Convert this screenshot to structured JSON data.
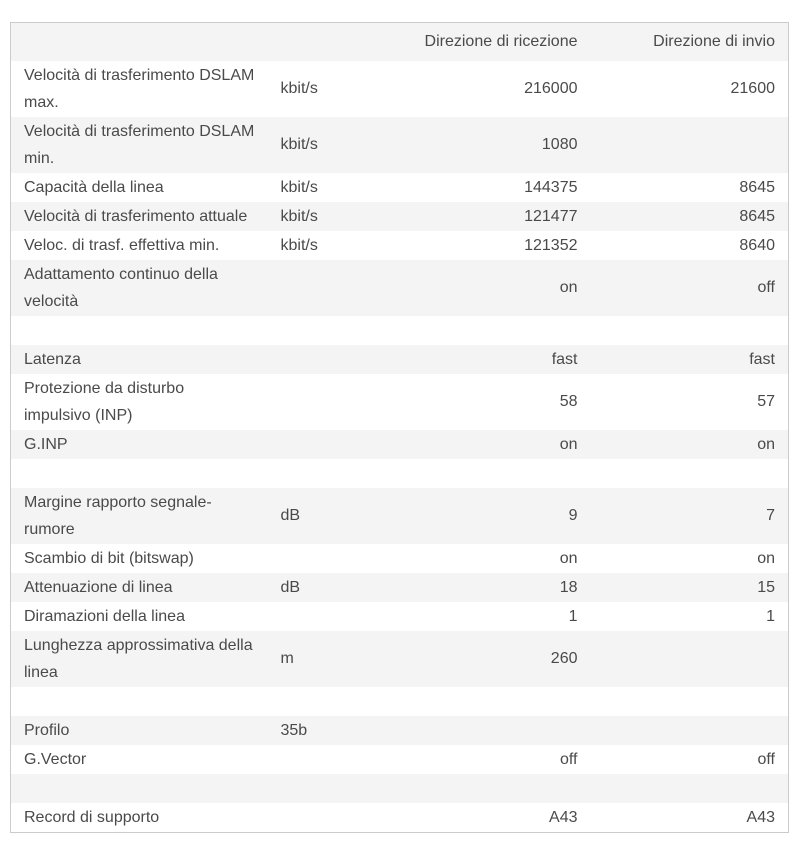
{
  "table": {
    "header": {
      "direction_rx": "Direzione di ricezione",
      "direction_tx": "Direzione di invio"
    },
    "rows": [
      {
        "label": "Velocità di trasferimento DSLAM\nmax.",
        "unit": "kbit/s",
        "rx": "216000",
        "tx": "21600"
      },
      {
        "label": "Velocità di trasferimento DSLAM\nmin.",
        "unit": "kbit/s",
        "rx": "1080",
        "tx": ""
      },
      {
        "label": "Capacità della linea",
        "unit": "kbit/s",
        "rx": "144375",
        "tx": "8645"
      },
      {
        "label": "Velocità di trasferimento attuale",
        "unit": "kbit/s",
        "rx": "121477",
        "tx": "8645"
      },
      {
        "label": "Veloc. di trasf. effettiva min.",
        "unit": "kbit/s",
        "rx": "121352",
        "tx": "8640"
      },
      {
        "label": "Adattamento continuo della\nvelocità",
        "unit": "",
        "rx": "on",
        "tx": "off"
      },
      {
        "label": "",
        "unit": "",
        "rx": "",
        "tx": ""
      },
      {
        "label": "Latenza",
        "unit": "",
        "rx": "fast",
        "tx": "fast"
      },
      {
        "label": "Protezione da disturbo\nimpulsivo (INP)",
        "unit": "",
        "rx": "58",
        "tx": "57"
      },
      {
        "label": "G.INP",
        "unit": "",
        "rx": "on",
        "tx": "on"
      },
      {
        "label": "",
        "unit": "",
        "rx": "",
        "tx": ""
      },
      {
        "label": "Margine rapporto segnale-\nrumore",
        "unit": "dB",
        "rx": "9",
        "tx": "7"
      },
      {
        "label": "Scambio di bit (bitswap)",
        "unit": "",
        "rx": "on",
        "tx": "on"
      },
      {
        "label": "Attenuazione di linea",
        "unit": "dB",
        "rx": "18",
        "tx": "15"
      },
      {
        "label": "Diramazioni della linea",
        "unit": "",
        "rx": "1",
        "tx": "1"
      },
      {
        "label": "Lunghezza approssimativa della\nlinea",
        "unit": "m",
        "rx": "260",
        "tx": ""
      },
      {
        "label": "",
        "unit": "",
        "rx": "",
        "tx": ""
      },
      {
        "label": "Profilo",
        "unit": "35b",
        "rx": "",
        "tx": ""
      },
      {
        "label": "G.Vector",
        "unit": "",
        "rx": "off",
        "tx": "off"
      },
      {
        "label": "",
        "unit": "",
        "rx": "",
        "tx": ""
      },
      {
        "label": "Record di supporto",
        "unit": "",
        "rx": "A43",
        "tx": "A43"
      }
    ]
  },
  "colors": {
    "stripe": "#f4f4f4",
    "border": "#cbcbcb",
    "text": "#4a4a4a",
    "background": "#ffffff"
  }
}
